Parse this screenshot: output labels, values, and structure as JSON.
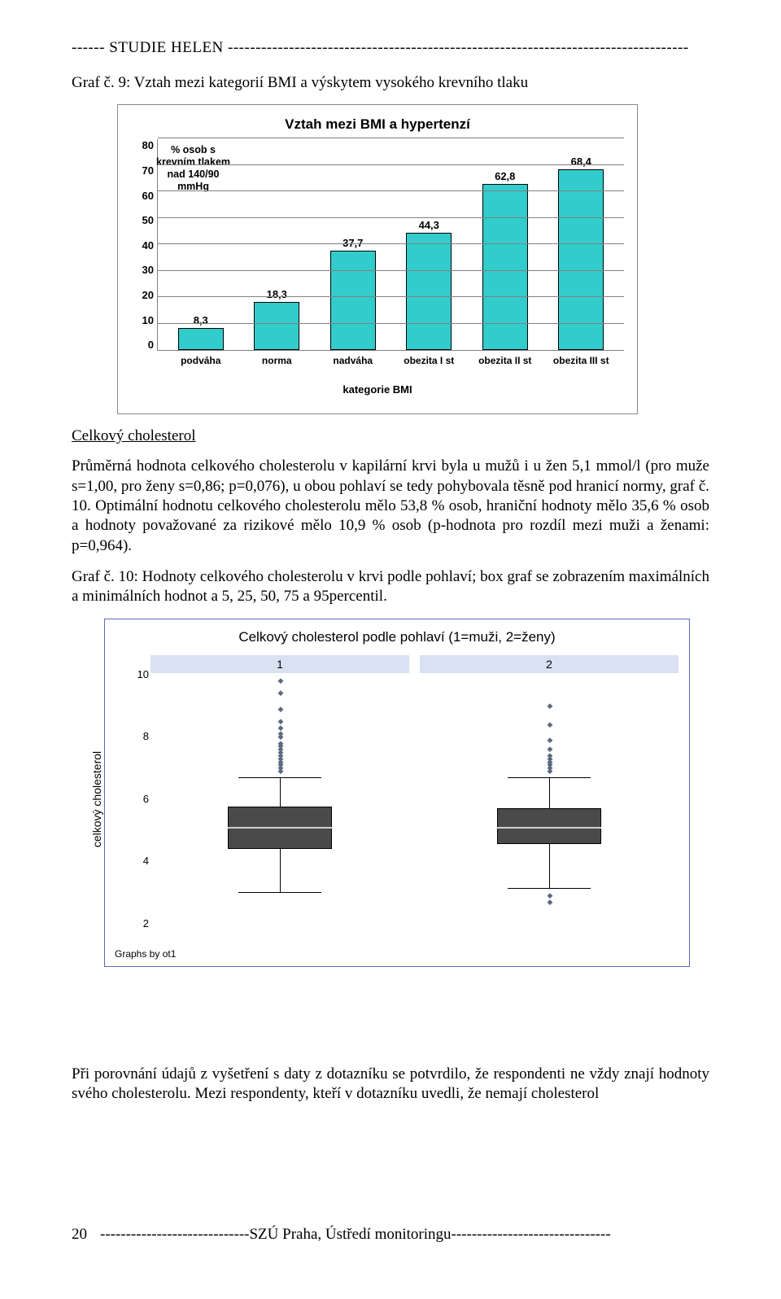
{
  "header_line": "------ STUDIE HELEN -----------------------------------------------------------------------------------",
  "graf9_caption": "Graf č. 9: Vztah mezi kategorií BMI a výskytem vysokého krevního tlaku",
  "bar_chart": {
    "title": "Vztah mezi BMI a hypertenzí",
    "y_ticks": [
      "80",
      "70",
      "60",
      "50",
      "40",
      "30",
      "20",
      "10",
      "0"
    ],
    "ymax": 80,
    "grid_step": 10,
    "annot_text": "% osob s\nkrevním tlakem\nnad 140/90\nmmHg",
    "bar_color": "#33cccc",
    "categories": [
      "podváha",
      "norma",
      "nadváha",
      "obezita I st",
      "obezita II st",
      "obezita III st"
    ],
    "values": [
      8.3,
      18.3,
      37.7,
      44.3,
      62.8,
      68.4
    ],
    "value_labels": [
      "8,3",
      "18,3",
      "37,7",
      "44,3",
      "62,8",
      "68,4"
    ],
    "x_axis_title": "kategorie BMI"
  },
  "section_head": "Celkový cholesterol",
  "para1": "Průměrná hodnota celkového cholesterolu v kapilární krvi byla u mužů i u žen 5,1 mmol/l (pro muže s=1,00, pro ženy s=0,86; p=0,076), u obou pohlaví se tedy pohybovala těsně pod hranicí normy, graf č. 10. Optimální hodnotu celkového cholesterolu mělo 53,8 % osob, hraniční hodnoty mělo 35,6 % osob a hodnoty považované za rizikové mělo 10,9 % osob (p-hodnota pro rozdíl mezi muži a ženami: p=0,964).",
  "graf10_caption": "Graf č. 10: Hodnoty celkového cholesterolu v krvi podle pohlaví; box graf se zobrazením maximálních a minimálních hodnot a 5, 25, 50, 75 a 95percentil.",
  "boxplot": {
    "title": "Celkový cholesterol podle pohlaví (1=muži, 2=ženy)",
    "y_label": "celkový cholesterol",
    "y_min": 2,
    "y_max": 10,
    "y_ticks": [
      2,
      4,
      6,
      8,
      10
    ],
    "panels": [
      {
        "label": "1",
        "q1": 4.4,
        "median": 5.1,
        "q3": 5.75,
        "whisker_low": 3.0,
        "whisker_high": 6.7,
        "outliers": [
          6.9,
          7.0,
          7.1,
          7.2,
          7.3,
          7.4,
          7.5,
          7.6,
          7.7,
          7.8,
          8.0,
          8.1,
          8.3,
          8.5,
          8.9,
          9.4,
          9.8
        ]
      },
      {
        "label": "2",
        "q1": 4.55,
        "median": 5.1,
        "q3": 5.7,
        "whisker_low": 3.15,
        "whisker_high": 6.7,
        "outliers": [
          6.9,
          7.0,
          7.1,
          7.2,
          7.3,
          7.4,
          7.6,
          7.9,
          8.4,
          9.0,
          2.9,
          2.7
        ]
      }
    ],
    "caption": "Graphs by ot1"
  },
  "para2": "Při porovnání údajů z vyšetření s daty z dotazníku se potvrdilo, že respondenti ne vždy znají hodnoty svého cholesterolu. Mezi respondenty, kteří v dotazníku uvedli, že nemají cholesterol",
  "footer_page": "20",
  "footer_text": "-----------------------------SZÚ Praha, Ústředí monitoringu-------------------------------"
}
